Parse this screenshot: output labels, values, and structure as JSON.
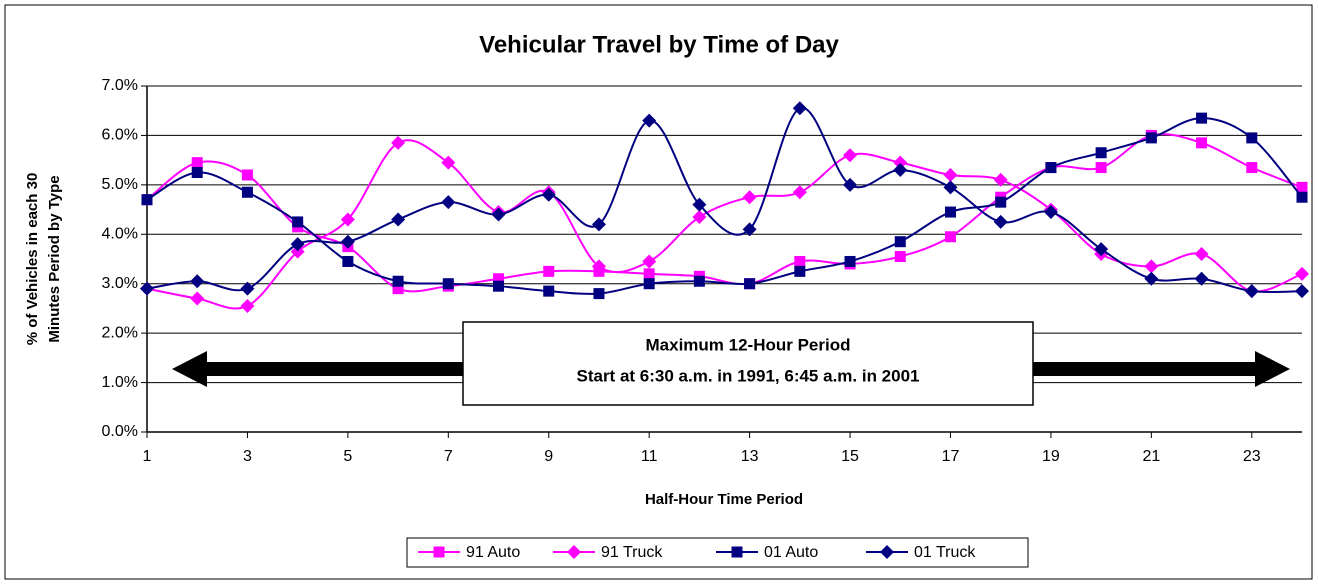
{
  "chart_data": {
    "type": "line",
    "title": "Vehicular Travel by Time of Day",
    "xlabel": "Half-Hour Time Period",
    "ylabel": [
      "% of Vehicles in each 30",
      "Minutes Period by Type"
    ],
    "x": [
      1,
      2,
      3,
      4,
      5,
      6,
      7,
      8,
      9,
      10,
      11,
      12,
      13,
      14,
      15,
      16,
      17,
      18,
      19,
      20,
      21,
      22,
      23,
      24
    ],
    "xlim": [
      1,
      24
    ],
    "xticks": [
      1,
      3,
      5,
      7,
      9,
      11,
      13,
      15,
      17,
      19,
      21,
      23
    ],
    "ylim": [
      0,
      7
    ],
    "yticks": [
      {
        "value": 0,
        "label": "0.0%"
      },
      {
        "value": 1,
        "label": "1.0%"
      },
      {
        "value": 2,
        "label": "2.0%"
      },
      {
        "value": 3,
        "label": "3.0%"
      },
      {
        "value": 4,
        "label": "4.0%"
      },
      {
        "value": 5,
        "label": "5.0%"
      },
      {
        "value": 6,
        "label": "6.0%"
      },
      {
        "value": 7,
        "label": "7.0%"
      }
    ],
    "grid": true,
    "smooth": true,
    "legend": "bottom",
    "annotation": [
      "Maximum 12-Hour Period",
      "Start at 6:30 a.m. in 1991, 6:45 a.m. in 2001"
    ],
    "series": [
      {
        "name": "91 Auto",
        "color": "#ff00ff",
        "marker": "square",
        "values": [
          4.7,
          5.45,
          5.2,
          4.15,
          3.75,
          2.9,
          2.95,
          3.1,
          3.25,
          3.25,
          3.2,
          3.15,
          3.0,
          3.45,
          3.4,
          3.55,
          3.95,
          4.75,
          5.35,
          5.35,
          6.0,
          5.85,
          5.35,
          4.95
        ]
      },
      {
        "name": "91 Truck",
        "color": "#ff00ff",
        "marker": "diamond",
        "values": [
          2.9,
          2.7,
          2.55,
          3.65,
          4.3,
          5.85,
          5.45,
          4.45,
          4.85,
          3.35,
          3.45,
          4.35,
          4.75,
          4.85,
          5.6,
          5.45,
          5.2,
          5.1,
          4.5,
          3.6,
          3.35,
          3.6,
          2.85,
          3.2
        ]
      },
      {
        "name": "01 Auto",
        "color": "#000080",
        "marker": "square",
        "values": [
          4.7,
          5.25,
          4.85,
          4.25,
          3.45,
          3.05,
          3.0,
          2.95,
          2.85,
          2.8,
          3.0,
          3.05,
          3.0,
          3.25,
          3.45,
          3.85,
          4.45,
          4.65,
          5.35,
          5.65,
          5.95,
          6.35,
          5.95,
          4.75
        ]
      },
      {
        "name": "01 Truck",
        "color": "#000080",
        "marker": "diamond",
        "values": [
          2.9,
          3.05,
          2.9,
          3.8,
          3.85,
          4.3,
          4.65,
          4.4,
          4.8,
          4.2,
          6.3,
          4.6,
          4.1,
          6.55,
          5.0,
          5.3,
          4.95,
          4.25,
          4.45,
          3.7,
          3.1,
          3.1,
          2.85,
          2.85
        ]
      }
    ]
  }
}
